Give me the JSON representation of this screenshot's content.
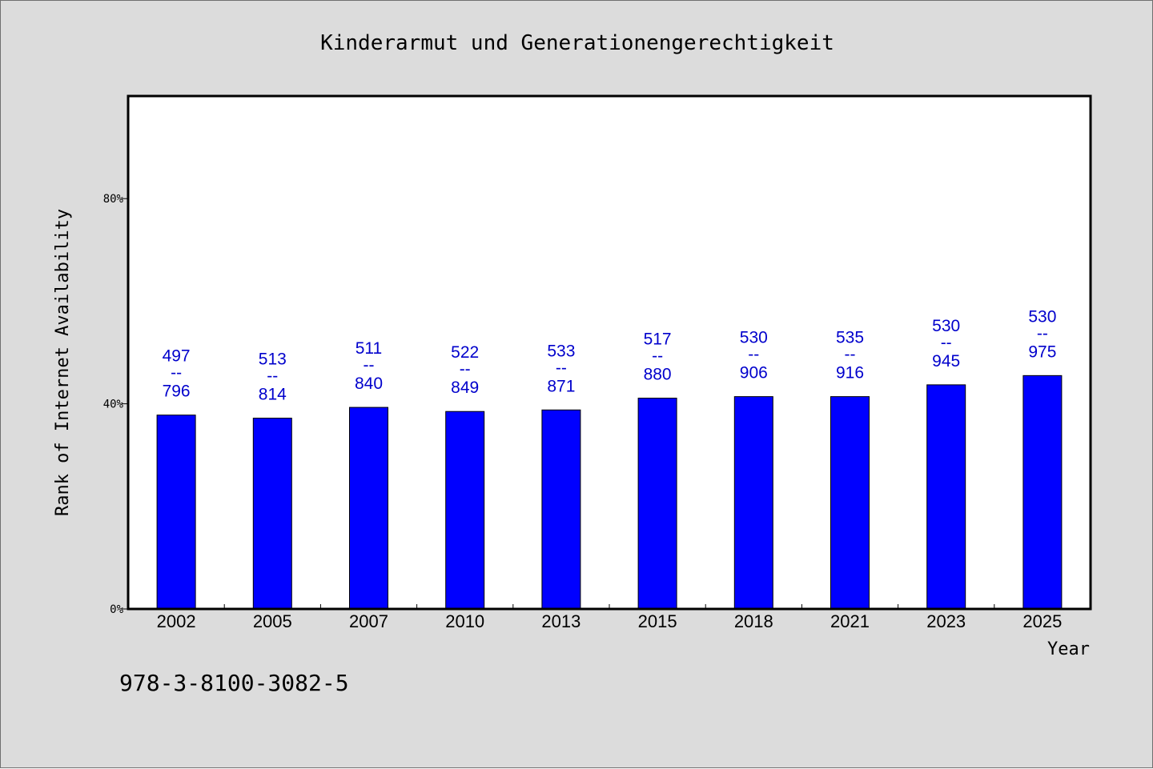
{
  "chart_data": {
    "type": "bar",
    "title": "Kinderarmut und Generationengerechtigkeit",
    "xlabel": "Year",
    "ylabel": "Rank of Internet Availability",
    "categories": [
      "2002",
      "2005",
      "2007",
      "2010",
      "2013",
      "2015",
      "2018",
      "2021",
      "2023",
      "2025"
    ],
    "values": [
      37.8,
      37.2,
      39.3,
      38.5,
      38.8,
      41.1,
      41.4,
      41.4,
      43.7,
      45.5
    ],
    "bar_labels": [
      {
        "top": "497",
        "sep": "--",
        "bottom": "796"
      },
      {
        "top": "513",
        "sep": "--",
        "bottom": "814"
      },
      {
        "top": "511",
        "sep": "--",
        "bottom": "840"
      },
      {
        "top": "522",
        "sep": "--",
        "bottom": "849"
      },
      {
        "top": "533",
        "sep": "--",
        "bottom": "871"
      },
      {
        "top": "517",
        "sep": "--",
        "bottom": "880"
      },
      {
        "top": "530",
        "sep": "--",
        "bottom": "906"
      },
      {
        "top": "535",
        "sep": "--",
        "bottom": "916"
      },
      {
        "top": "530",
        "sep": "--",
        "bottom": "945"
      },
      {
        "top": "530",
        "sep": "--",
        "bottom": "975"
      }
    ],
    "ylim": [
      0,
      100
    ],
    "yticks": [
      0,
      40,
      80
    ],
    "ytick_labels": [
      "0%",
      "40%",
      "80%"
    ],
    "grid": false,
    "colors": {
      "bar": "#0000ff",
      "label": "#0000cc",
      "background": "#dcdcdc",
      "plot": "#ffffff"
    }
  },
  "footnote": "978-3-8100-3082-5"
}
